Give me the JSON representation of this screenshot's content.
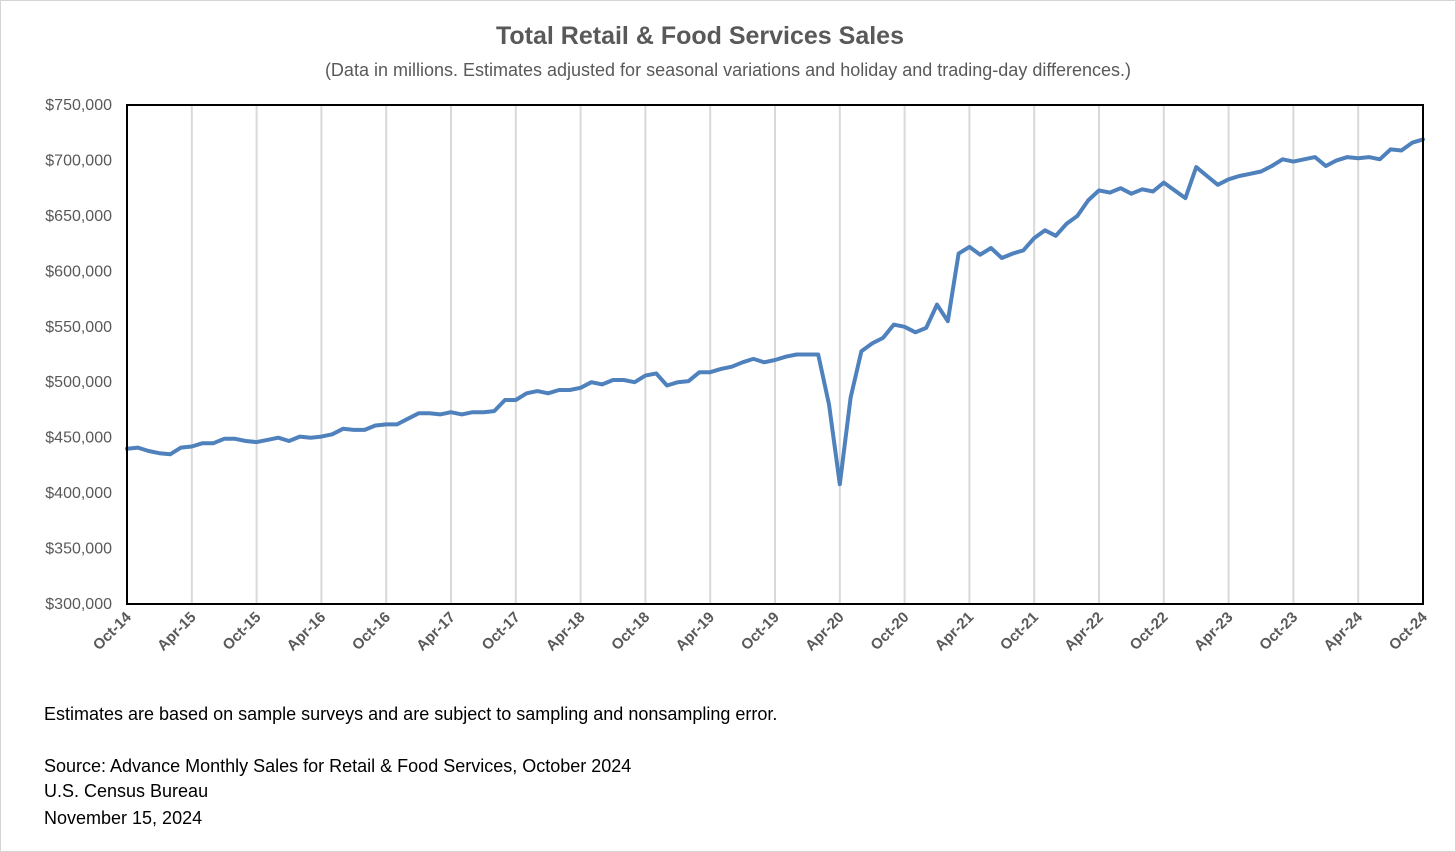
{
  "chart_data": {
    "type": "line",
    "title": "Total Retail & Food Services Sales",
    "subtitle": "(Data in millions. Estimates adjusted for seasonal variations and holiday and trading-day differences.)",
    "xlabel": "",
    "ylabel": "",
    "x_start": "Oct-14",
    "x_end": "Oct-24",
    "x_tick_labels": [
      "Oct-14",
      "Apr-15",
      "Oct-15",
      "Apr-16",
      "Oct-16",
      "Apr-17",
      "Oct-17",
      "Apr-18",
      "Oct-18",
      "Apr-19",
      "Oct-19",
      "Apr-20",
      "Oct-20",
      "Apr-21",
      "Oct-21",
      "Apr-22",
      "Oct-22",
      "Apr-23",
      "Oct-23",
      "Apr-24",
      "Oct-24"
    ],
    "ylim": [
      300000,
      750000
    ],
    "y_tick_labels": [
      "$300,000",
      "$350,000",
      "$400,000",
      "$450,000",
      "$500,000",
      "$550,000",
      "$600,000",
      "$650,000",
      "$700,000",
      "$750,000"
    ],
    "y_ticks": [
      300000,
      350000,
      400000,
      450000,
      500000,
      550000,
      600000,
      650000,
      700000,
      750000
    ],
    "grid": "vertical",
    "legend": "none",
    "line_color": "#4f81bd",
    "series": [
      {
        "values": [
          440000,
          441000,
          438000,
          436000,
          435000,
          441000,
          442000,
          445000,
          445000,
          449000,
          449000,
          447000,
          446000,
          448000,
          450000,
          447000,
          451000,
          450000,
          451000,
          453000,
          458000,
          457000,
          457000,
          461000,
          462000,
          462000,
          467000,
          472000,
          472000,
          471000,
          473000,
          471000,
          473000,
          473000,
          474000,
          484000,
          484000,
          490000,
          492000,
          490000,
          493000,
          493000,
          495000,
          500000,
          498000,
          502000,
          502000,
          500000,
          506000,
          508000,
          497000,
          500000,
          501000,
          509000,
          509000,
          512000,
          514000,
          518000,
          521000,
          518000,
          520000,
          523000,
          525000,
          525000,
          525000,
          480000,
          408000,
          486000,
          528000,
          535000,
          540000,
          552000,
          550000,
          545000,
          549000,
          570000,
          555000,
          616000,
          622000,
          615000,
          621000,
          612000,
          616000,
          619000,
          630000,
          637000,
          632000,
          643000,
          650000,
          664000,
          673000,
          671000,
          675000,
          670000,
          674000,
          672000,
          680000,
          673000,
          666000,
          694000,
          686000,
          678000,
          683000,
          686000,
          688000,
          690000,
          695000,
          701000,
          699000,
          701000,
          703000,
          695000,
          700000,
          703000,
          702000,
          703000,
          701000,
          710000,
          709000,
          716000,
          719000
        ]
      }
    ]
  },
  "notes": {
    "sampling": "Estimates are based on sample surveys and are subject to sampling and nonsampling error.",
    "source": "Source: Advance Monthly Sales for Retail & Food Services, October 2024",
    "agency": "U.S. Census Bureau",
    "date": "November 15, 2024"
  }
}
